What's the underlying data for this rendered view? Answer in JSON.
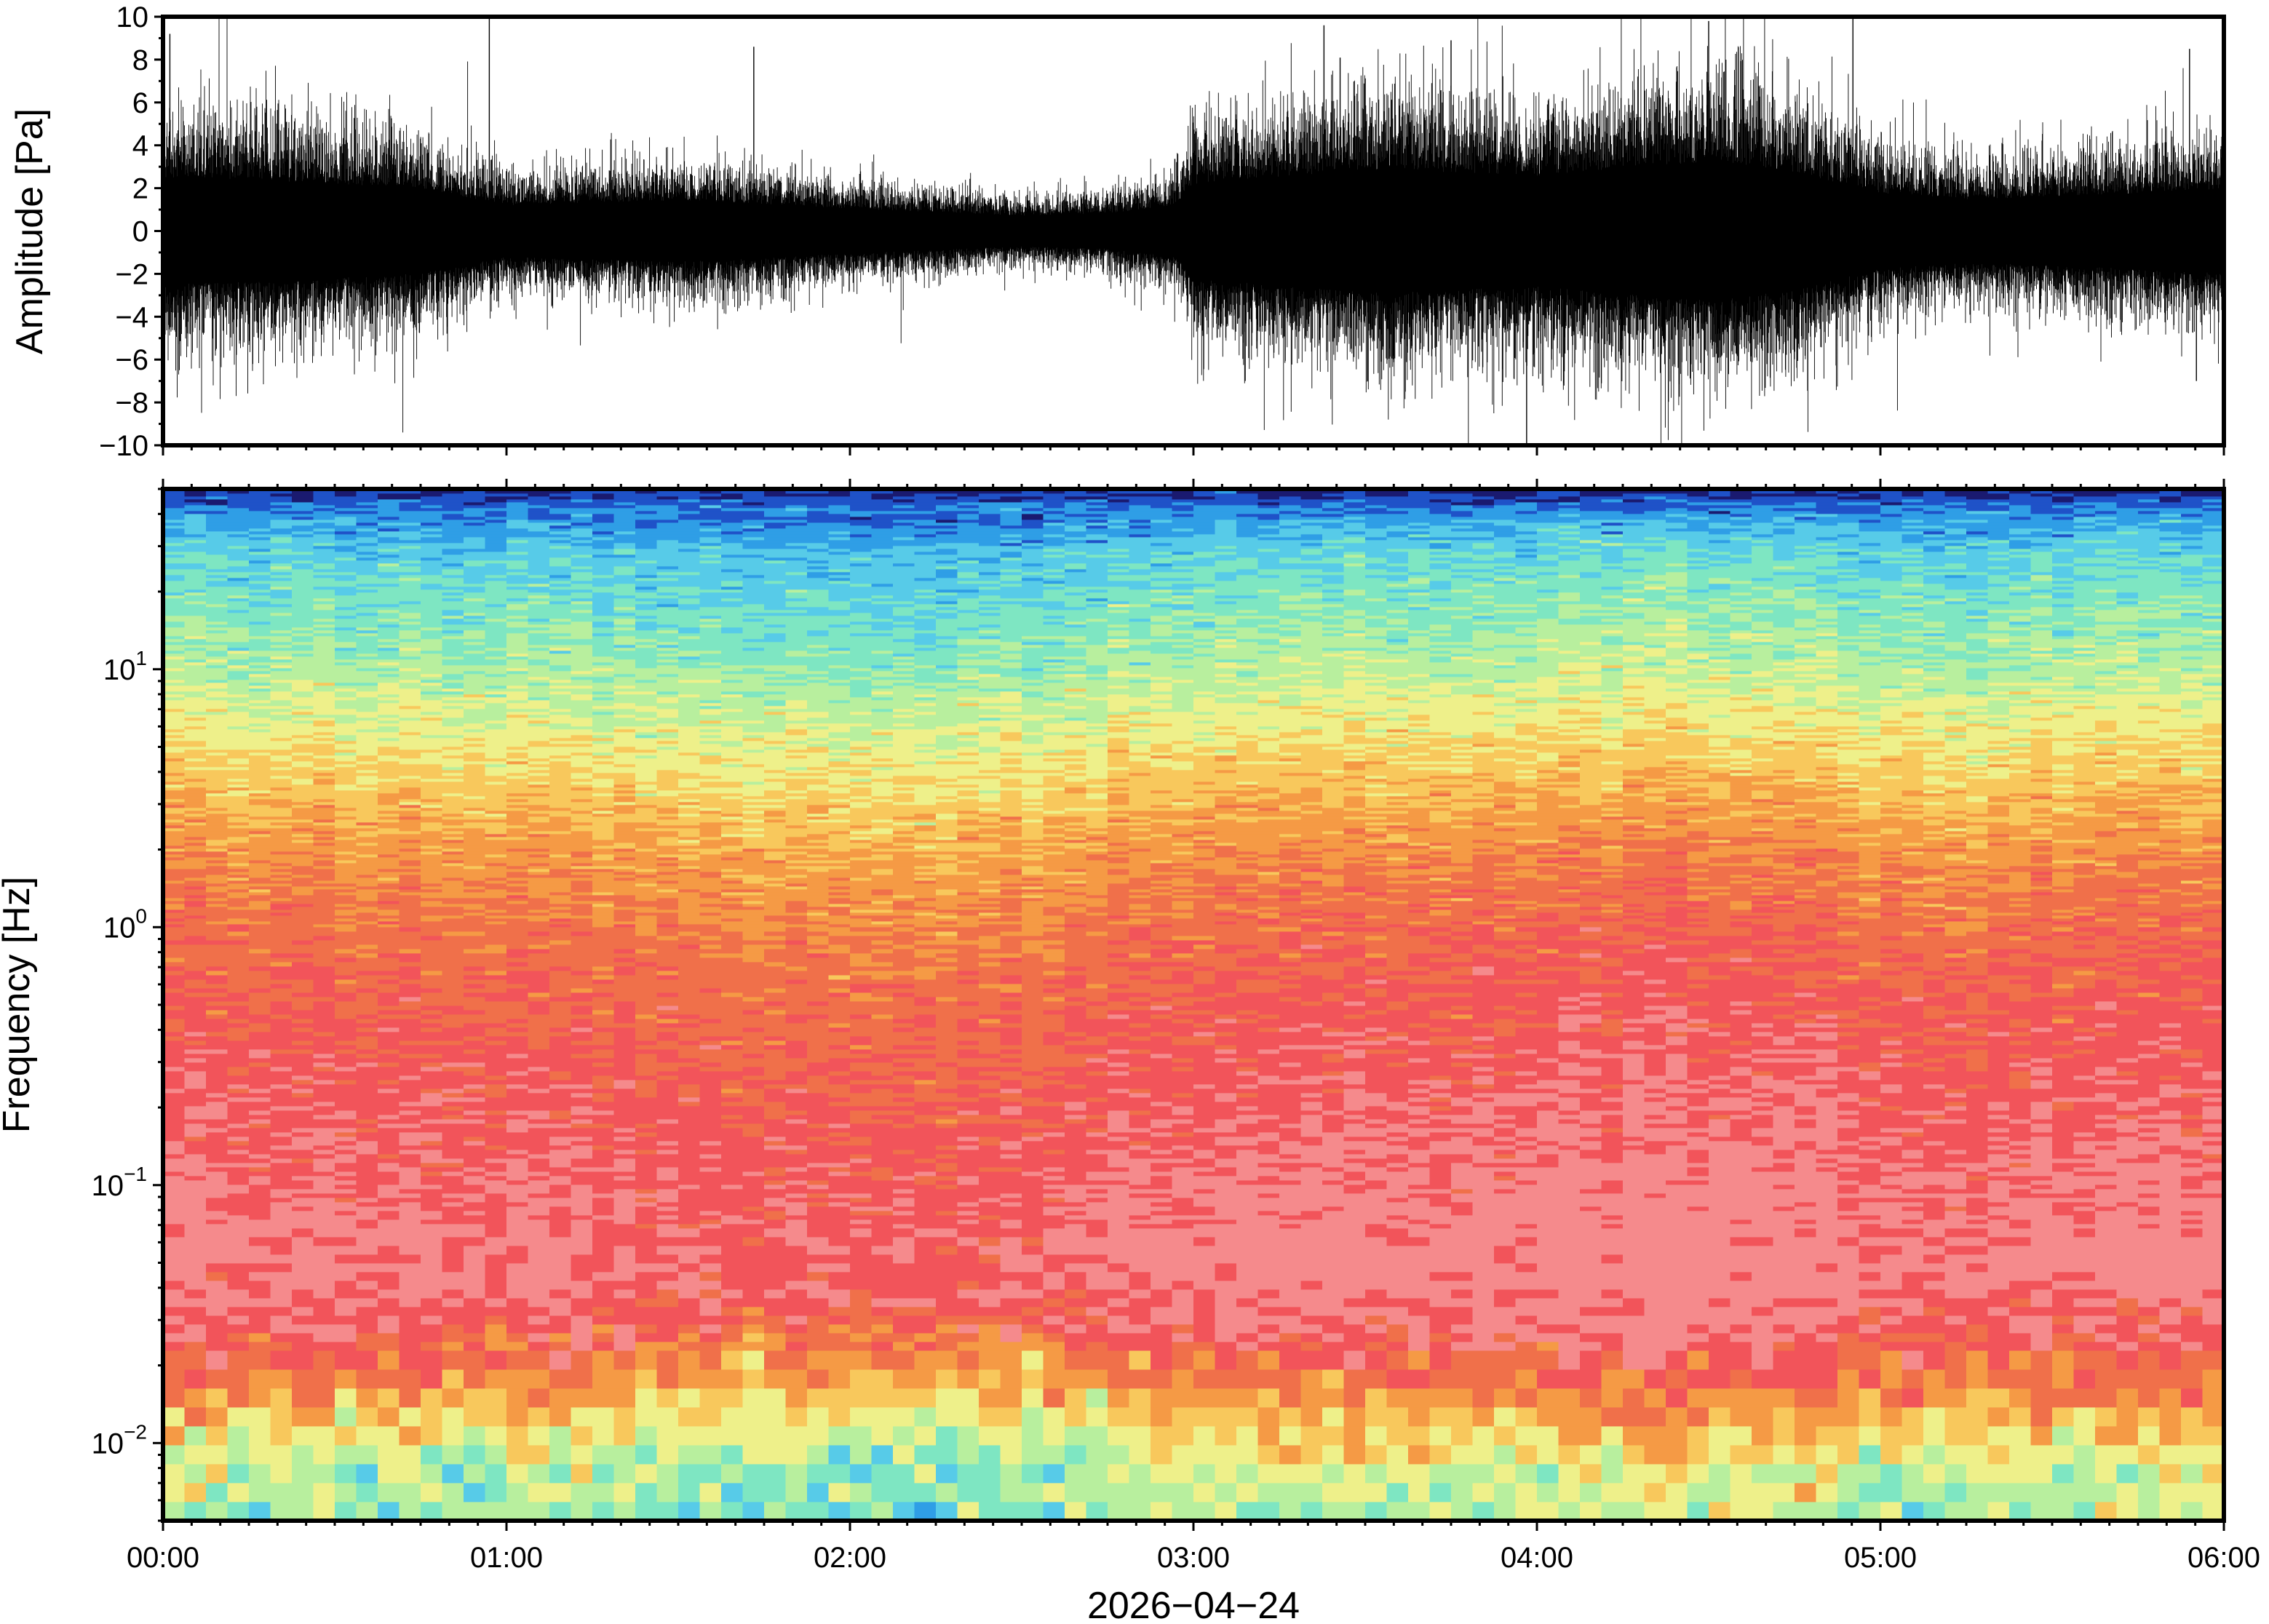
{
  "chart_data": [
    {
      "type": "line",
      "panel": "waveform",
      "ylabel": "Amplitude [Pa]",
      "ylim": [
        -10,
        10
      ],
      "yticks": [
        -10,
        -8,
        -6,
        -4,
        -2,
        0,
        2,
        4,
        6,
        8,
        10
      ],
      "ytick_labels": [
        "−10",
        "−8",
        "−6",
        "−4",
        "−2",
        "0",
        "2",
        "4",
        "6",
        "8",
        "10"
      ],
      "xlim_hours": [
        0,
        6
      ],
      "color": "#000000",
      "envelope": {
        "x_hours": [
          0.0,
          0.25,
          0.5,
          0.75,
          1.0,
          1.25,
          1.5,
          1.75,
          2.0,
          2.25,
          2.5,
          2.75,
          2.95,
          3.0,
          3.25,
          3.5,
          3.75,
          4.0,
          4.25,
          4.5,
          4.75,
          5.0,
          5.25,
          5.5,
          5.75,
          6.0
        ],
        "amplitude": [
          4.5,
          4.3,
          4.0,
          3.6,
          2.2,
          2.4,
          2.6,
          2.3,
          1.9,
          1.6,
          1.3,
          1.5,
          2.2,
          4.0,
          4.6,
          5.2,
          5.0,
          4.7,
          5.3,
          5.9,
          5.0,
          3.2,
          2.7,
          2.9,
          3.2,
          3.6
        ]
      },
      "spikes": [
        {
          "x_hours": 0.02,
          "y": 9.2
        },
        {
          "x_hours": 0.95,
          "y": 9.9
        },
        {
          "x_hours": 1.72,
          "y": 8.6
        },
        {
          "x_hours": 3.38,
          "y": 9.6
        },
        {
          "x_hours": 3.75,
          "y": 8.9
        },
        {
          "x_hours": 3.97,
          "y": -10.0
        },
        {
          "x_hours": 4.5,
          "y": 9.8
        },
        {
          "x_hours": 4.92,
          "y": 9.9
        },
        {
          "x_hours": 5.9,
          "y": 8.5
        },
        {
          "x_hours": 5.92,
          "y": -7.0
        }
      ]
    },
    {
      "type": "heatmap",
      "panel": "spectrogram",
      "ylabel": "Frequency [Hz]",
      "yscale": "log",
      "ylim": [
        0.005,
        50
      ],
      "yticks": [
        0.01,
        0.1,
        1,
        10
      ],
      "ytick_labels": [
        {
          "base": "10",
          "exp": "−2"
        },
        {
          "base": "10",
          "exp": "−1"
        },
        {
          "base": "10",
          "exp": "0"
        },
        {
          "base": "10",
          "exp": "1"
        }
      ],
      "xlabel": "2026−04−24",
      "xlim_hours": [
        0,
        6
      ],
      "xticks_hours": [
        0,
        1,
        2,
        3,
        4,
        5,
        6
      ],
      "xtick_labels": [
        "00:00",
        "01:00",
        "02:00",
        "03:00",
        "04:00",
        "05:00",
        "06:00"
      ],
      "colormap": [
        "#1a1a70",
        "#1f52c8",
        "#2f9ee6",
        "#57cbe8",
        "#7ee6c2",
        "#b8ef9e",
        "#eef08a",
        "#f8c85c",
        "#f59a45",
        "#f0704a",
        "#f2545a",
        "#f58a8c"
      ],
      "profile": {
        "log10_freq": [
          -2.3,
          -2.1,
          -1.95,
          -1.75,
          -1.55,
          -1.3,
          -1.0,
          -0.6,
          -0.3,
          0.0,
          0.3,
          0.55,
          0.8,
          1.0,
          1.25,
          1.45,
          1.62,
          1.68
        ],
        "level": [
          4.8,
          5.3,
          6.6,
          8.6,
          10.2,
          10.9,
          10.6,
          10.0,
          9.6,
          9.0,
          8.1,
          7.0,
          5.9,
          4.9,
          4.0,
          3.2,
          1.6,
          0.4
        ]
      }
    }
  ]
}
